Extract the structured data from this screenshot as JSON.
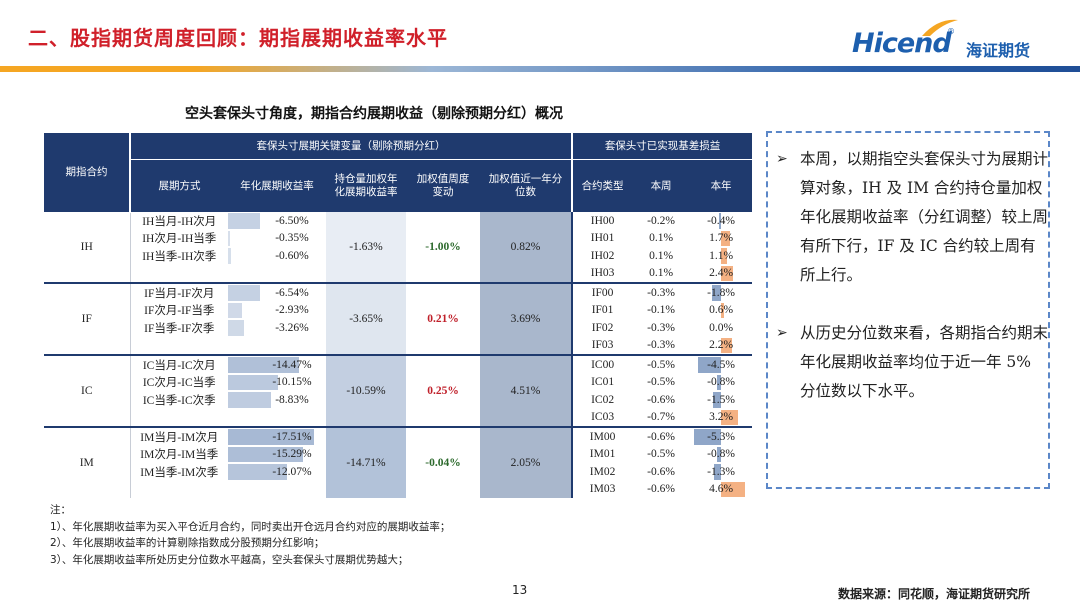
{
  "header": {
    "title": "二、股指期货周度回顾：期指展期收益率水平",
    "logo_text": "Hicend",
    "logo_mark": "®",
    "logo_cn": "海证期货"
  },
  "table_title": "空头套保头寸角度，期指合约展期收益（剔除预期分红）概况",
  "table": {
    "headers": {
      "contract": "期指合约",
      "group1": "套保头寸展期关键变量（剔除预期分红）",
      "group2": "套保头寸已实现基差损益",
      "roll": "展期方式",
      "annual_rate": "年化展期收益率",
      "hold_weighted": "持仓量加权年化展期收益率",
      "weekly_change": "加权值周度变动",
      "percentile": "加权值近一年分位数",
      "contract_type": "合约类型",
      "this_week": "本周",
      "this_year": "本年"
    },
    "groups": [
      {
        "contract": "IH",
        "rows": [
          {
            "roll": "IH当月-IH次月",
            "rate": "-6.50%",
            "rate_num": -6.5,
            "ctype": "IH00",
            "wk": "-0.2%",
            "yr": "-0.4%",
            "wk_num": -0.2,
            "yr_num": -0.4
          },
          {
            "roll": "IH次月-IH当季",
            "rate": "-0.35%",
            "rate_num": -0.35,
            "ctype": "IH01",
            "wk": "0.1%",
            "yr": "1.7%",
            "wk_num": 0.1,
            "yr_num": 1.7
          },
          {
            "roll": "IH当季-IH次季",
            "rate": "-0.60%",
            "rate_num": -0.6,
            "ctype": "IH02",
            "wk": "0.1%",
            "yr": "1.1%",
            "wk_num": 0.1,
            "yr_num": 1.1
          },
          {
            "roll": "",
            "rate": "",
            "rate_num": 0,
            "ctype": "IH03",
            "wk": "0.1%",
            "yr": "2.4%",
            "wk_num": 0.1,
            "yr_num": 2.4
          }
        ],
        "hold": "-1.63%",
        "hold_num": -1.63,
        "chg": "-1.00%",
        "chg_color": "#2d6a2d",
        "pct": "0.82%"
      },
      {
        "contract": "IF",
        "rows": [
          {
            "roll": "IF当月-IF次月",
            "rate": "-6.54%",
            "rate_num": -6.54,
            "ctype": "IF00",
            "wk": "-0.3%",
            "yr": "-1.8%",
            "wk_num": -0.3,
            "yr_num": -1.8
          },
          {
            "roll": "IF次月-IF当季",
            "rate": "-2.93%",
            "rate_num": -2.93,
            "ctype": "IF01",
            "wk": "-0.1%",
            "yr": "0.6%",
            "wk_num": -0.1,
            "yr_num": 0.6
          },
          {
            "roll": "IF当季-IF次季",
            "rate": "-3.26%",
            "rate_num": -3.26,
            "ctype": "IF02",
            "wk": "-0.3%",
            "yr": "0.0%",
            "wk_num": -0.3,
            "yr_num": 0.0
          },
          {
            "roll": "",
            "rate": "",
            "rate_num": 0,
            "ctype": "IF03",
            "wk": "-0.3%",
            "yr": "2.2%",
            "wk_num": -0.3,
            "yr_num": 2.2
          }
        ],
        "hold": "-3.65%",
        "hold_num": -3.65,
        "chg": "0.21%",
        "chg_color": "#c0202a",
        "pct": "3.69%"
      },
      {
        "contract": "IC",
        "rows": [
          {
            "roll": "IC当月-IC次月",
            "rate": "-14.47%",
            "rate_num": -14.47,
            "ctype": "IC00",
            "wk": "-0.5%",
            "yr": "-4.5%",
            "wk_num": -0.5,
            "yr_num": -4.5
          },
          {
            "roll": "IC次月-IC当季",
            "rate": "-10.15%",
            "rate_num": -10.15,
            "ctype": "IC01",
            "wk": "-0.5%",
            "yr": "-0.8%",
            "wk_num": -0.5,
            "yr_num": -0.8
          },
          {
            "roll": "IC当季-IC次季",
            "rate": "-8.83%",
            "rate_num": -8.83,
            "ctype": "IC02",
            "wk": "-0.6%",
            "yr": "-1.5%",
            "wk_num": -0.6,
            "yr_num": -1.5
          },
          {
            "roll": "",
            "rate": "",
            "rate_num": 0,
            "ctype": "IC03",
            "wk": "-0.7%",
            "yr": "3.2%",
            "wk_num": -0.7,
            "yr_num": 3.2
          }
        ],
        "hold": "-10.59%",
        "hold_num": -10.59,
        "chg": "0.25%",
        "chg_color": "#c0202a",
        "pct": "4.51%"
      },
      {
        "contract": "IM",
        "rows": [
          {
            "roll": "IM当月-IM次月",
            "rate": "-17.51%",
            "rate_num": -17.51,
            "ctype": "IM00",
            "wk": "-0.6%",
            "yr": "-5.3%",
            "wk_num": -0.6,
            "yr_num": -5.3
          },
          {
            "roll": "IM次月-IM当季",
            "rate": "-15.29%",
            "rate_num": -15.29,
            "ctype": "IM01",
            "wk": "-0.5%",
            "yr": "-0.8%",
            "wk_num": -0.5,
            "yr_num": -0.8
          },
          {
            "roll": "IM当季-IM次季",
            "rate": "-12.07%",
            "rate_num": -12.07,
            "ctype": "IM02",
            "wk": "-0.6%",
            "yr": "-1.3%",
            "wk_num": -0.6,
            "yr_num": -1.3
          },
          {
            "roll": "",
            "rate": "",
            "rate_num": 0,
            "ctype": "IM03",
            "wk": "-0.6%",
            "yr": "4.6%",
            "wk_num": -0.6,
            "yr_num": 4.6
          }
        ],
        "hold": "-14.71%",
        "hold_num": -14.71,
        "chg": "-0.04%",
        "chg_color": "#2d6a2d",
        "pct": "2.05%"
      }
    ]
  },
  "notes": {
    "label": "注：",
    "items": [
      "1）、年化展期收益率为买入平仓近月合约，同时卖出开仓远月合约对应的展期收益率；",
      "2）、年化展期收益率的计算剔除指数成分股预期分红影响；",
      "3）、年化展期收益率所处历史分位数水平越高，空头套保头寸展期优势越大；"
    ]
  },
  "sidebar": {
    "bullets": [
      "本周，以期指空头套保头寸为展期计算对象，IH 及 IM 合约持仓量加权年化展期收益率（分红调整）较上周有所下行，IF 及 IC 合约较上周有所上行。",
      "从历史分位数来看，各期指合约期末年化展期收益率均位于近一年 5% 分位数以下水平。"
    ]
  },
  "footer": {
    "page_number": "13",
    "source": "数据来源：同花顺，海证期货研究所"
  },
  "colors": {
    "header_bg": "#1f3a6e",
    "title_red": "#d0202a",
    "brand_blue": "#1d5fae",
    "pct_fill": "#a9b7cc",
    "positive_bar": "#f4b183",
    "negative_bar": "#8fa6c8"
  }
}
